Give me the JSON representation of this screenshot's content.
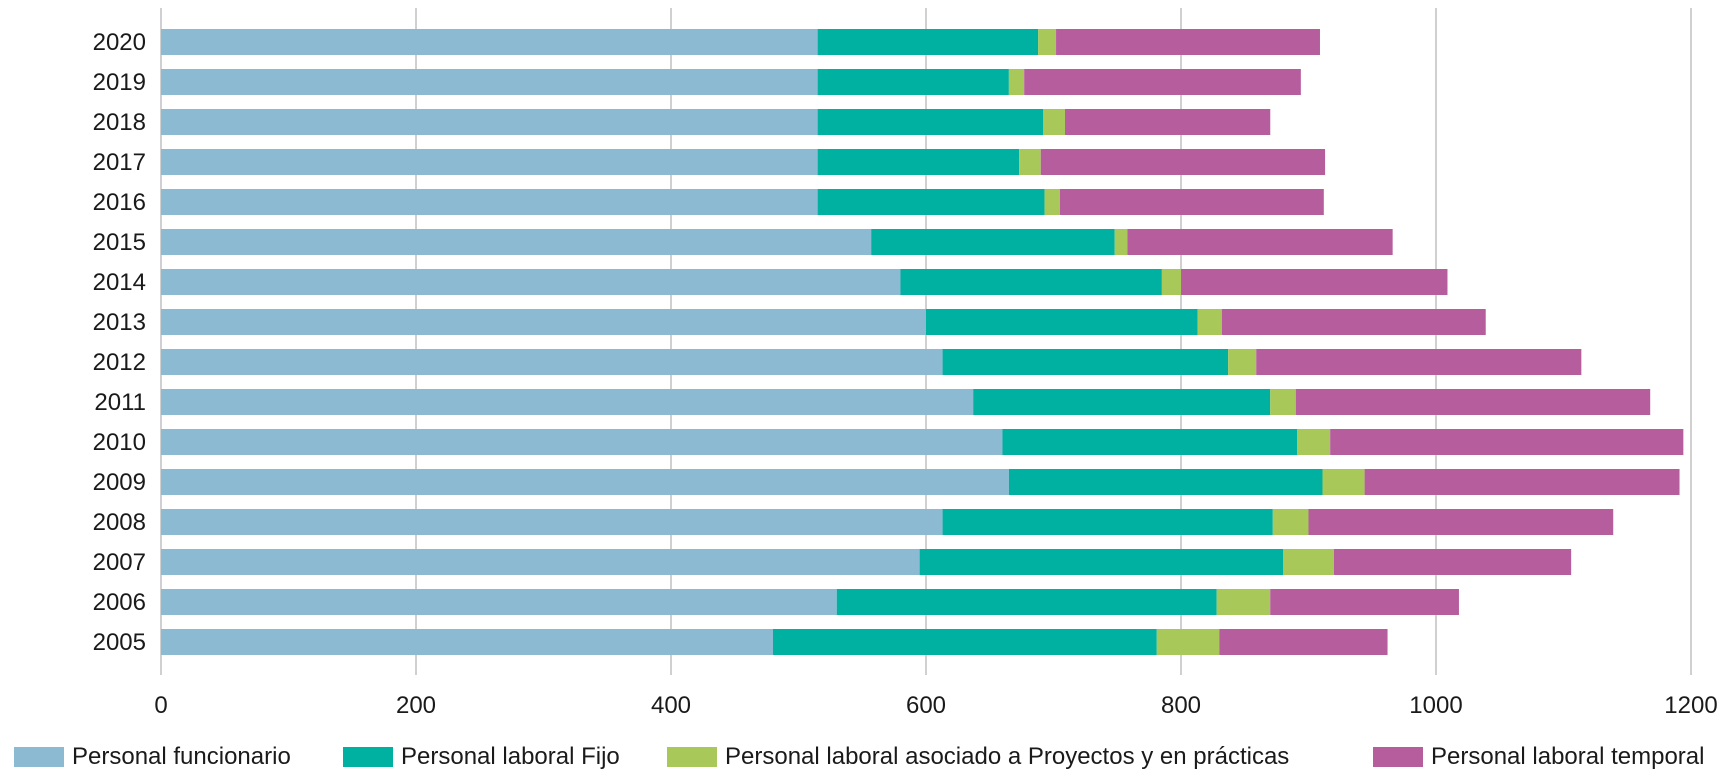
{
  "chart_data": {
    "type": "bar",
    "orientation": "horizontal",
    "stacked": true,
    "categories": [
      "2020",
      "2019",
      "2018",
      "2017",
      "2016",
      "2015",
      "2014",
      "2013",
      "2012",
      "2011",
      "2010",
      "2009",
      "2008",
      "2007",
      "2006",
      "2005"
    ],
    "series": [
      {
        "name": "Personal funcionario",
        "color": "#8dbad3",
        "values": [
          515,
          515,
          515,
          515,
          515,
          557,
          580,
          600,
          613,
          637,
          660,
          665,
          613,
          595,
          530,
          480
        ]
      },
      {
        "name": "Personal laboral Fijo",
        "color": "#00b0a0",
        "values": [
          173,
          150,
          177,
          158,
          178,
          191,
          205,
          213,
          224,
          233,
          231,
          246,
          259,
          285,
          298,
          301
        ]
      },
      {
        "name": "Personal laboral asociado a Proyectos y en prácticas",
        "color": "#a8c85a",
        "values": [
          14,
          12,
          17,
          17,
          12,
          10,
          15,
          19,
          22,
          20,
          26,
          33,
          28,
          40,
          42,
          49
        ]
      },
      {
        "name": "Personal laboral temporal",
        "color": "#b65d9d",
        "values": [
          207,
          217,
          161,
          223,
          207,
          208,
          209,
          207,
          255,
          278,
          277,
          247,
          239,
          186,
          148,
          132
        ]
      }
    ],
    "xticks": [
      "0",
      "200",
      "400",
      "600",
      "800",
      "1000",
      "1200"
    ],
    "xlim": [
      0,
      1200
    ],
    "grid": true,
    "legend": "bottom",
    "title": "",
    "xlabel": "",
    "ylabel": ""
  }
}
